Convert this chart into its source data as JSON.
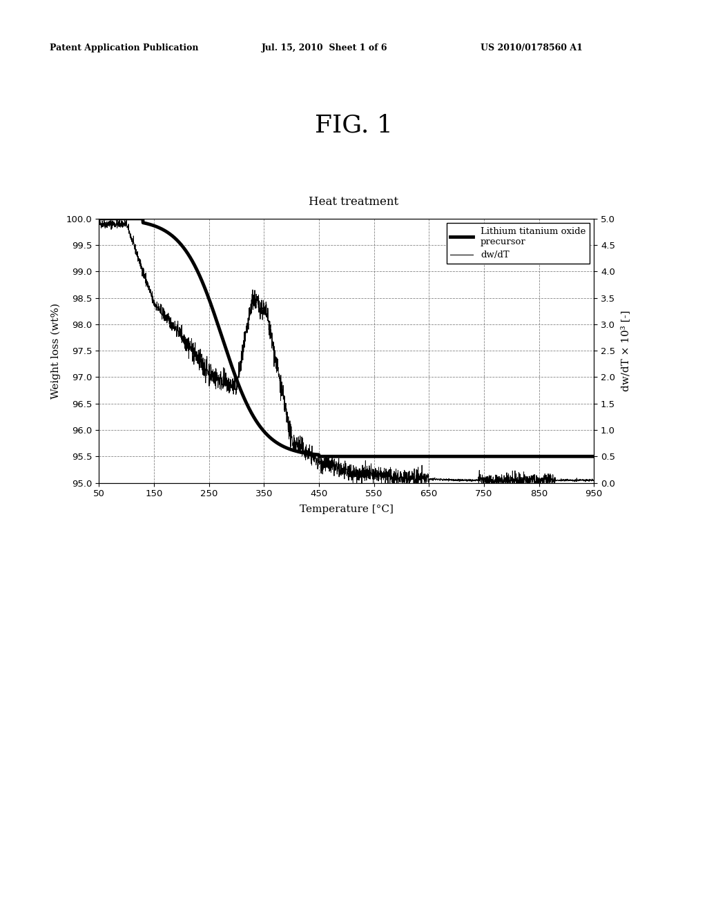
{
  "title_fig": "FIG. 1",
  "title_chart": "Heat treatment",
  "xlabel": "Temperature [°C]",
  "ylabel_left": "Weight loss (wt%)",
  "ylabel_right": "dw/dT × 10³ [-]",
  "header_left": "Patent Application Publication",
  "header_center": "Jul. 15, 2010  Sheet 1 of 6",
  "header_right": "US 2010/0178560 A1",
  "xlim": [
    50,
    950
  ],
  "ylim_left": [
    95.0,
    100.0
  ],
  "ylim_right": [
    0.0,
    5.0
  ],
  "xticks": [
    50,
    150,
    250,
    350,
    450,
    550,
    650,
    750,
    850,
    950
  ],
  "yticks_left": [
    95.0,
    95.5,
    96.0,
    96.5,
    97.0,
    97.5,
    98.0,
    98.5,
    99.0,
    99.5,
    100.0
  ],
  "yticks_right": [
    0.0,
    0.5,
    1.0,
    1.5,
    2.0,
    2.5,
    3.0,
    3.5,
    4.0,
    4.5,
    5.0
  ],
  "background_color": "#ffffff",
  "line_color_thick": "#000000",
  "line_color_thin": "#000000",
  "legend_label_thick": "Lithium titanium oxide\nprecursor",
  "legend_label_thin": "dw/dT"
}
